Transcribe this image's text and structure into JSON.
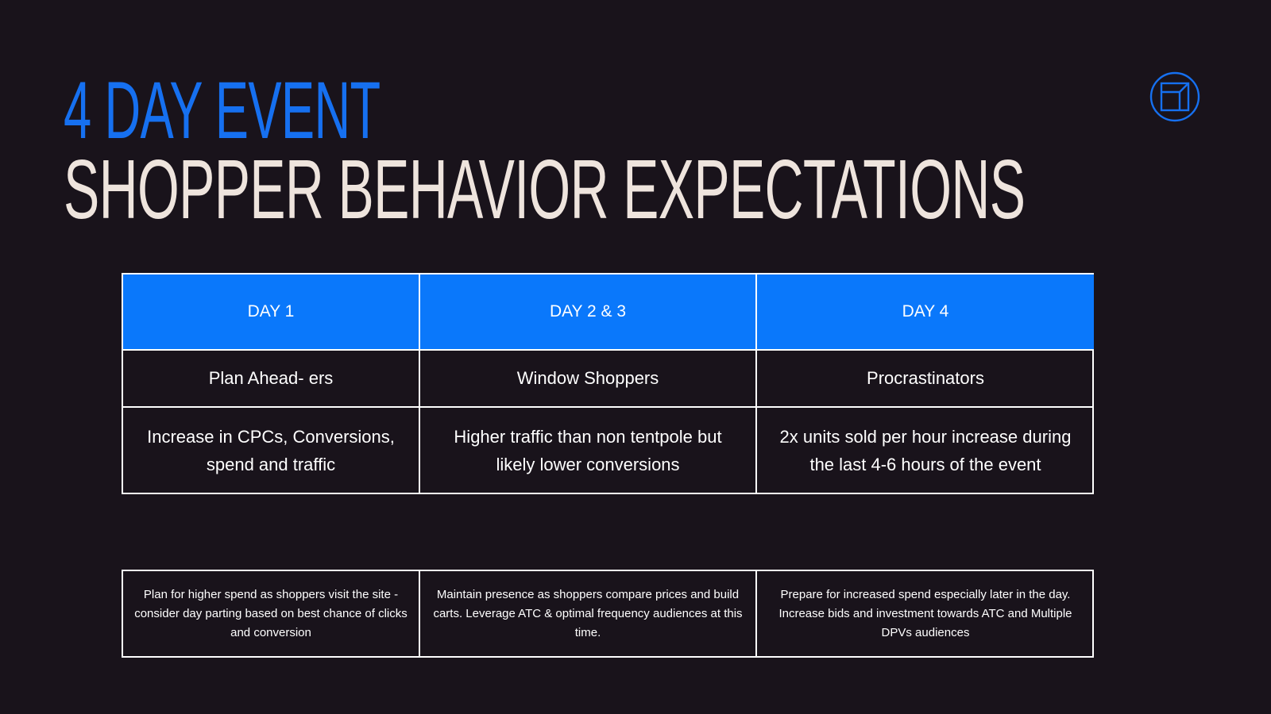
{
  "title": {
    "line1": "4 DAY EVENT",
    "line2": "SHOPPER BEHAVIOR EXPECTATIONS"
  },
  "logo": {
    "icon": "box-cube-icon"
  },
  "colors": {
    "background": "#19131b",
    "accent_blue": "#0a78fb",
    "title_blue": "#1670f0",
    "title_light": "#eee4dd",
    "border": "#ffffff"
  },
  "table": {
    "columns": [
      {
        "header": "DAY 1",
        "segment": "Plan Ahead- ers",
        "behavior": "Increase in CPCs, Conversions, spend and traffic"
      },
      {
        "header": "DAY 2 & 3",
        "segment": "Window Shoppers",
        "behavior": "Higher traffic than non tentpole but likely lower conversions"
      },
      {
        "header": "DAY 4",
        "segment": "Procrastinators",
        "behavior": "2x units sold per hour increase during the last 4-6 hours of the event"
      }
    ]
  },
  "recommendations": [
    "Plan for higher spend as shoppers visit the site - consider day parting based on best chance of clicks and conversion",
    "Maintain presence as shoppers compare prices and build carts. Leverage ATC & optimal frequency audiences at this time.",
    "Prepare for increased spend especially later in the day. Increase bids and investment towards ATC and Multiple DPVs audiences"
  ]
}
